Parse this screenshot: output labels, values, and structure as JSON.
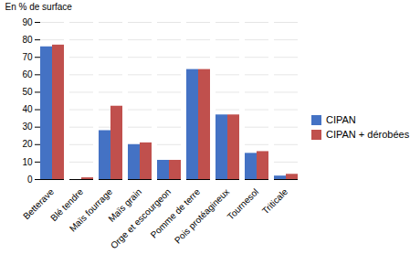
{
  "chart_data": {
    "type": "bar",
    "categories": [
      "Betterave",
      "Blé tendre",
      "Maïs fourrage",
      "Maïs grain",
      "Orge et escourgeon",
      "Pomme de terre",
      "Pois protéagineux",
      "Tournesol",
      "Triticale"
    ],
    "series": [
      {
        "name": "CIPAN",
        "color": "#4472C4",
        "values": [
          76,
          0,
          28,
          20,
          11,
          63,
          37,
          15,
          2
        ]
      },
      {
        "name": "CIPAN + dérobées",
        "color": "#C0504D",
        "values": [
          77,
          1,
          42,
          21,
          11,
          63,
          37,
          16,
          3
        ]
      }
    ],
    "ylabel": "En % de surface",
    "ylim": [
      0,
      90
    ],
    "yticks": [
      0,
      10,
      20,
      30,
      40,
      50,
      60,
      70,
      80,
      90
    ],
    "grid": true,
    "legend": "right"
  }
}
